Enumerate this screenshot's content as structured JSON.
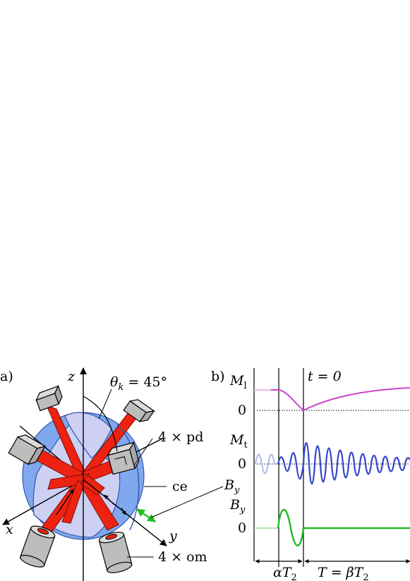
{
  "panel_a": {
    "panel_label": "a)",
    "axis_z": "z",
    "axis_x": "x",
    "axis_y": "y",
    "theta_sym": "θ",
    "theta_sub": "k",
    "theta_val": " = 45°",
    "pd_label": "4 × pd",
    "ce_label": "ce",
    "by_sym": "B",
    "by_sub": "y",
    "om_label": "4 × om",
    "colors": {
      "beam": "#ee2211",
      "cell": "#7fa8ef",
      "cell_inner": "#cdd0f3",
      "device": "#bdbdbd",
      "arrow": "#22bb22"
    }
  },
  "panel_b": {
    "panel_label": "b)",
    "t0_label": "t = 0",
    "ml_sym": "M",
    "ml_sub": "l",
    "mt_sym": "M",
    "mt_sub": "t",
    "by_sym": "B",
    "by_sub": "y",
    "zero": "0",
    "alpha_sym": "αT",
    "alpha_sub": "2",
    "T_sym": "T = βT",
    "T_sub": "2",
    "colors": {
      "ml": "#cc44cc",
      "ml_faint": "#ecb8ec",
      "mt": "#3344cc",
      "mt_faint": "#b4bbee",
      "by": "#22bb22",
      "by_faint": "#b2e6b2"
    }
  }
}
